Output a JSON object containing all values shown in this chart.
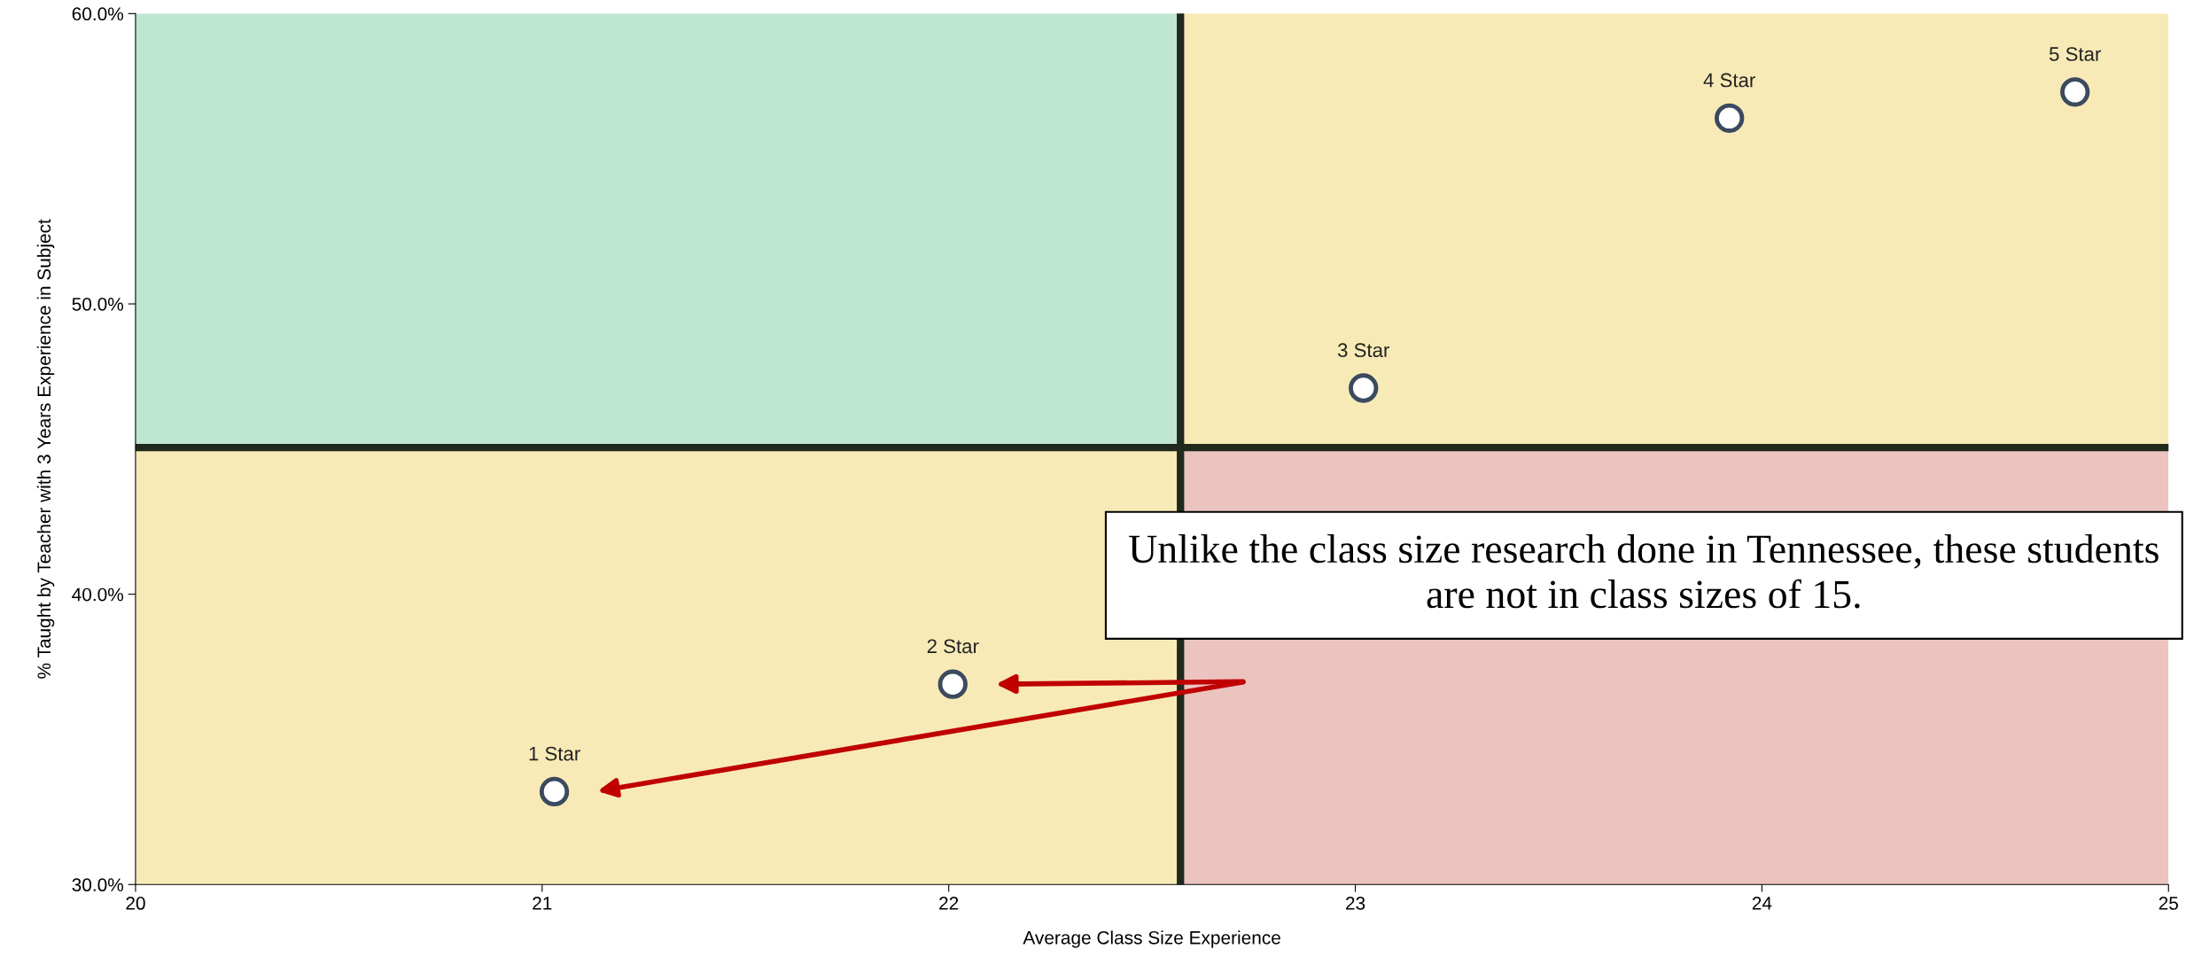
{
  "chart_data": {
    "type": "scatter",
    "xlabel": "Average Class Size Experience",
    "ylabel": "% Taught by Teacher with 3 Years Experience in Subject",
    "series": [
      {
        "name": "1 Star",
        "color": "#3b4a5e",
        "x": [
          21.03
        ],
        "values": [
          33.2
        ]
      },
      {
        "name": "2 Star",
        "color": "#3b4a5e",
        "x": [
          22.01
        ],
        "values": [
          36.9
        ]
      },
      {
        "name": "3 Star",
        "color": "#3b4a5e",
        "x": [
          23.02
        ],
        "values": [
          47.1
        ]
      },
      {
        "name": "4 Star",
        "color": "#3b4a5e",
        "x": [
          23.92
        ],
        "values": [
          56.4
        ]
      },
      {
        "name": "5 Star",
        "color": "#3b4a5e",
        "x": [
          24.77
        ],
        "values": [
          57.3
        ]
      }
    ],
    "marker": "circle",
    "legend": false,
    "grid": false,
    "xlim": [
      20,
      25
    ],
    "xticks": [
      20,
      21,
      22,
      23,
      24,
      25
    ],
    "ylim": [
      30,
      60
    ],
    "yticks": [
      {
        "value": 30,
        "label": "30.0%"
      },
      {
        "value": 40,
        "label": "40.0%"
      },
      {
        "value": 50,
        "label": "50.0%"
      },
      {
        "value": 60,
        "label": "60.0%"
      }
    ],
    "ref_lines": [
      {
        "axis": "x",
        "value": 22.57,
        "color": "#1f2a1c"
      },
      {
        "axis": "y",
        "value": 45.05,
        "color": "#1f2a1c"
      }
    ],
    "annotations": [
      "Unlike the class size research done in Tennessee, these students are not in class sizes of 15."
    ]
  }
}
